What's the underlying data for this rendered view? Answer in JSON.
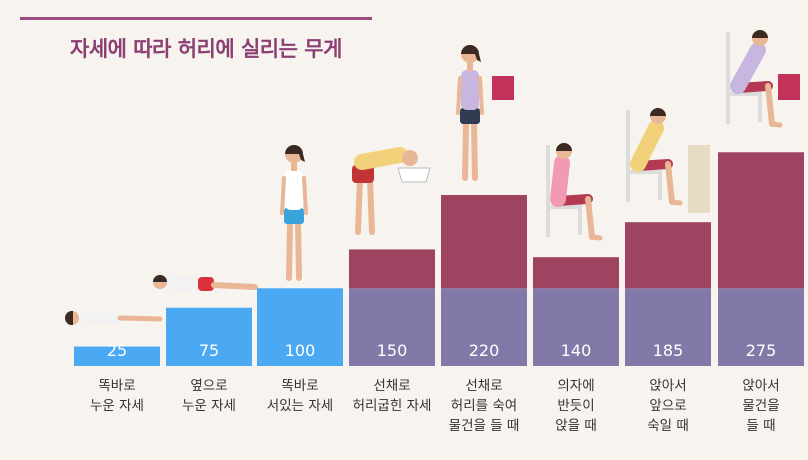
{
  "title": "자세에 따라 허리에 실리는 무게",
  "colors": {
    "blue": "#4aa9f2",
    "purple": "#8379a8",
    "maroon": "#9e4460",
    "title": "#8c3f72"
  },
  "chart_data": {
    "type": "bar",
    "title": "자세에 따라 허리에 실리는 무게",
    "categories": [
      [
        "똑바로",
        "누운 자세"
      ],
      [
        "옆으로",
        "누운 자세"
      ],
      [
        "똑바로",
        "서있는 자세"
      ],
      [
        "선채로",
        "허리굽힌 자세"
      ],
      [
        "선채로",
        "허리를 숙여",
        "물건을 들 때"
      ],
      [
        "의자에",
        "반듯이",
        "앉을 때"
      ],
      [
        "앉아서",
        "앞으로",
        "숙일 때"
      ],
      [
        "앉아서",
        "물건을",
        "들 때"
      ]
    ],
    "values": [
      25,
      75,
      100,
      150,
      220,
      140,
      185,
      275
    ],
    "value_labels": [
      "25",
      "75",
      "100",
      "150",
      "220",
      "140",
      "185",
      "275"
    ],
    "ylim": [
      0,
      300
    ],
    "baseline_reference": 100,
    "illustrations": [
      "person-lying-on-back",
      "person-lying-on-side",
      "person-standing",
      "person-bending-over-sink",
      "person-standing-lifting-box",
      "person-sitting-upright",
      "person-sitting-leaning-forward",
      "person-sitting-lifting-box"
    ]
  }
}
